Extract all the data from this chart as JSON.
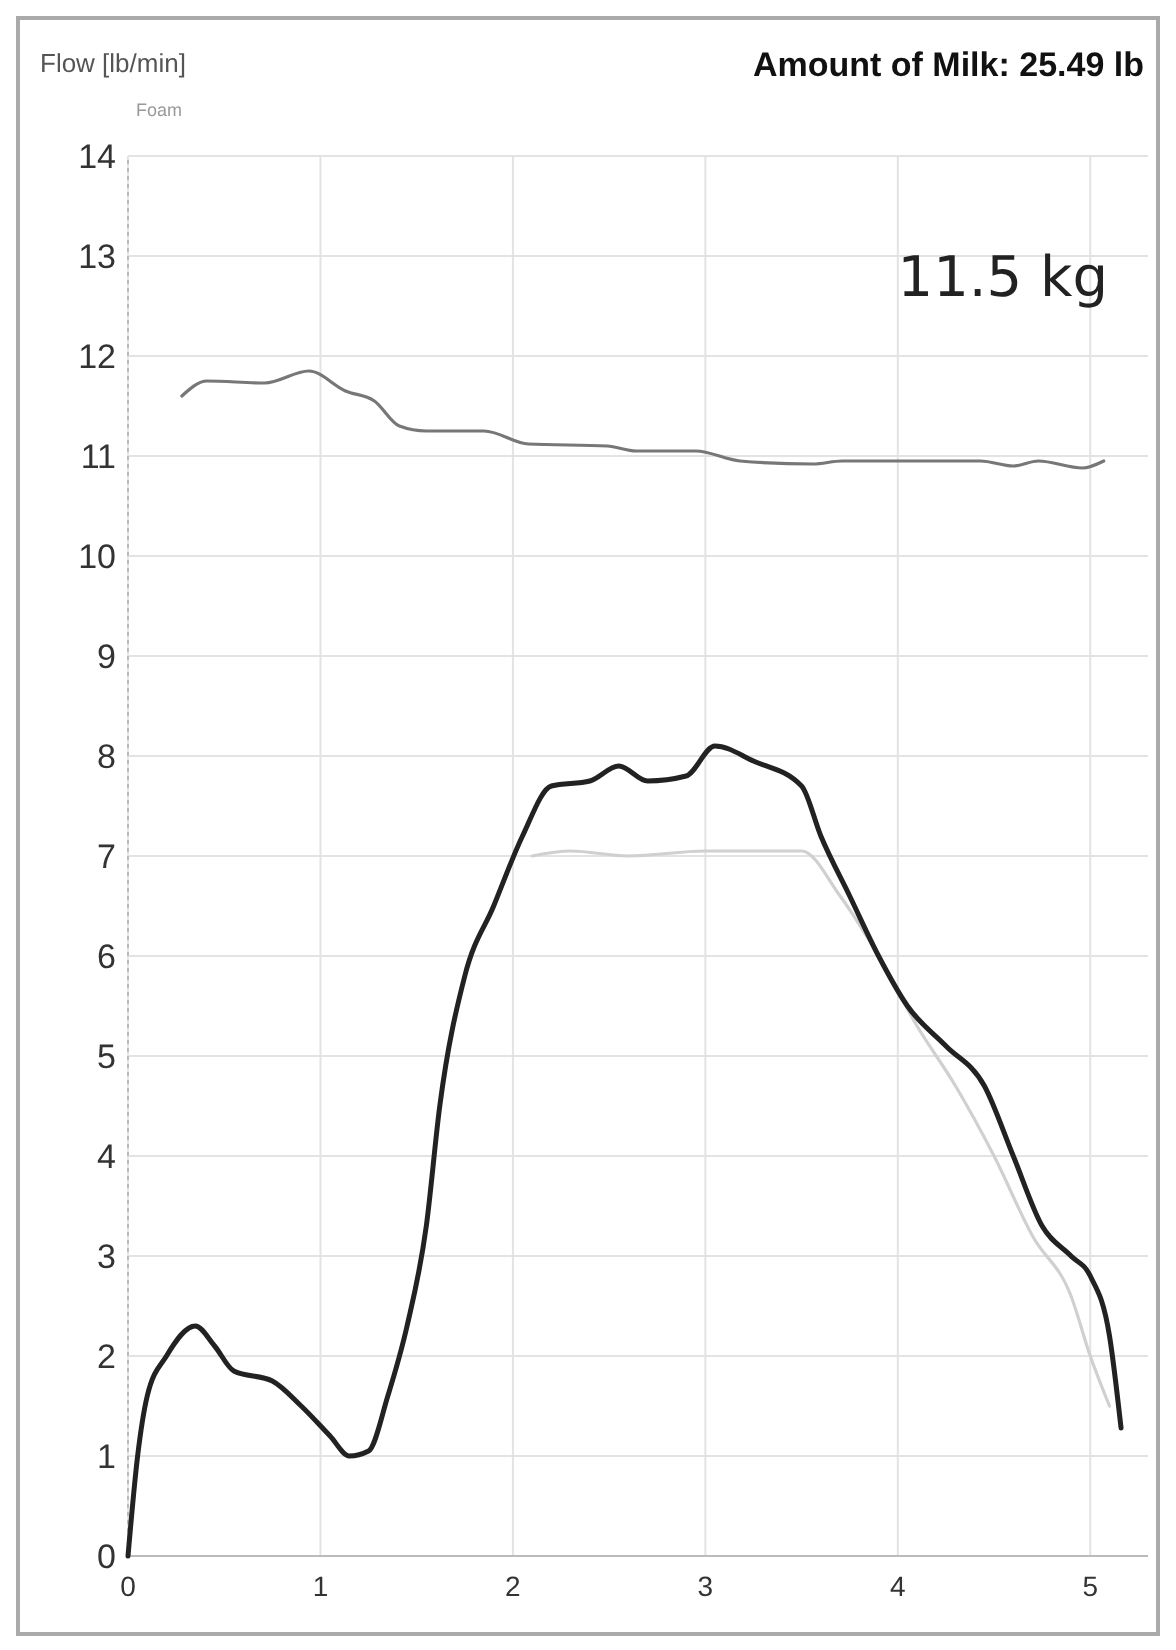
{
  "chart_data": {
    "type": "line",
    "title": "Amount of Milk: 25.49 lb",
    "ylabel": "Flow [lb/min]",
    "annotations": [
      "Foam",
      "11.5 kg"
    ],
    "xlim": [
      0,
      5.3
    ],
    "ylim": [
      0,
      14
    ],
    "xticks": [
      0,
      1,
      2,
      3,
      4,
      5
    ],
    "yticks": [
      0,
      1,
      2,
      3,
      4,
      5,
      6,
      7,
      8,
      9,
      10,
      11,
      12,
      13,
      14
    ],
    "grid": true,
    "marker": "none",
    "line_style": "solid",
    "series": [
      {
        "color": "#777777",
        "x": [
          0.28,
          0.41,
          0.71,
          0.94,
          1.13,
          1.28,
          1.41,
          1.55,
          1.85,
          2.08,
          2.49,
          2.64,
          2.95,
          3.18,
          3.56,
          3.71,
          4.09,
          4.43,
          4.6,
          4.73,
          4.96,
          5.07
        ],
        "values": [
          11.6,
          11.75,
          11.73,
          11.85,
          11.65,
          11.55,
          11.3,
          11.25,
          11.25,
          11.12,
          11.1,
          11.05,
          11.05,
          10.95,
          10.92,
          10.95,
          10.95,
          10.95,
          10.9,
          10.95,
          10.88,
          10.95
        ]
      },
      {
        "color": "#d0d0d0",
        "x": [
          2.1,
          2.3,
          2.6,
          3.0,
          3.5,
          3.7,
          3.9,
          4.1,
          4.3,
          4.5,
          4.7,
          4.9,
          5.0,
          5.1
        ],
        "values": [
          7.0,
          7.05,
          7.0,
          7.05,
          7.05,
          6.6,
          6.0,
          5.3,
          4.7,
          4.0,
          3.2,
          2.6,
          2.0,
          1.5
        ]
      },
      {
        "color": "#222222",
        "x": [
          0,
          0.05,
          0.1,
          0.2,
          0.35,
          0.45,
          0.55,
          0.75,
          0.9,
          1.05,
          1.15,
          1.25,
          1.35,
          1.45,
          1.55,
          1.62,
          1.75,
          1.9,
          2.05,
          2.2,
          2.4,
          2.55,
          2.7,
          2.9,
          3.05,
          3.25,
          3.5,
          3.6,
          3.75,
          3.9,
          4.05,
          4.25,
          4.45,
          4.6,
          4.75,
          4.9,
          5.0,
          5.1,
          5.16
        ],
        "values": [
          0,
          1,
          1.6,
          2.0,
          2.3,
          2.1,
          1.85,
          1.75,
          1.5,
          1.2,
          1.0,
          1.05,
          1.6,
          2.3,
          3.3,
          4.5,
          5.8,
          6.5,
          7.2,
          7.7,
          7.75,
          7.9,
          7.75,
          7.8,
          8.1,
          7.95,
          7.7,
          7.2,
          6.6,
          6.0,
          5.5,
          5.1,
          4.7,
          4.0,
          3.3,
          3.0,
          2.8,
          2.2,
          1.28
        ]
      }
    ]
  }
}
